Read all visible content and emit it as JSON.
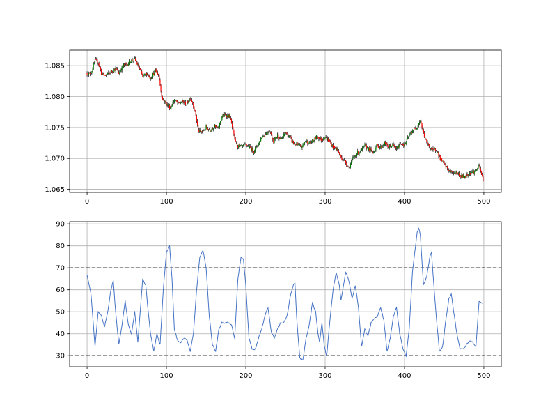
{
  "chart_data": [
    {
      "type": "candlestick",
      "title": "",
      "xlabel": "",
      "ylabel": "",
      "xlim": [
        -22,
        522
      ],
      "ylim": [
        1.0645,
        1.0875
      ],
      "x_ticks": [
        0,
        100,
        200,
        300,
        400,
        500
      ],
      "x_tick_labels": [
        "0",
        "100",
        "200",
        "300",
        "400",
        "500"
      ],
      "y_ticks": [
        1.065,
        1.07,
        1.075,
        1.08,
        1.085
      ],
      "y_tick_labels": [
        "1.065",
        "1.070",
        "1.075",
        "1.080",
        "1.085"
      ],
      "grid": true,
      "colors": {
        "up": "#008000",
        "down": "#ff0000",
        "wick": "#000000"
      },
      "close_anchors": [
        [
          0,
          1.0838
        ],
        [
          3,
          1.0836
        ],
        [
          6,
          1.0842
        ],
        [
          10,
          1.0858
        ],
        [
          14,
          1.0856
        ],
        [
          18,
          1.0838
        ],
        [
          22,
          1.0834
        ],
        [
          28,
          1.0838
        ],
        [
          32,
          1.0842
        ],
        [
          36,
          1.0845
        ],
        [
          40,
          1.0838
        ],
        [
          45,
          1.085
        ],
        [
          50,
          1.0852
        ],
        [
          55,
          1.0858
        ],
        [
          60,
          1.086
        ],
        [
          65,
          1.0848
        ],
        [
          70,
          1.0832
        ],
        [
          75,
          1.0838
        ],
        [
          80,
          1.083
        ],
        [
          86,
          1.0842
        ],
        [
          90,
          1.0835
        ],
        [
          95,
          1.0795
        ],
        [
          100,
          1.0788
        ],
        [
          105,
          1.0782
        ],
        [
          110,
          1.0795
        ],
        [
          115,
          1.0788
        ],
        [
          120,
          1.0792
        ],
        [
          125,
          1.0788
        ],
        [
          130,
          1.0798
        ],
        [
          133,
          1.079
        ],
        [
          137,
          1.077
        ],
        [
          140,
          1.0745
        ],
        [
          145,
          1.0742
        ],
        [
          150,
          1.075
        ],
        [
          155,
          1.0746
        ],
        [
          160,
          1.0752
        ],
        [
          165,
          1.0748
        ],
        [
          170,
          1.0768
        ],
        [
          175,
          1.077
        ],
        [
          180,
          1.0768
        ],
        [
          183,
          1.075
        ],
        [
          186,
          1.073
        ],
        [
          190,
          1.072
        ],
        [
          195,
          1.0718
        ],
        [
          200,
          1.0722
        ],
        [
          205,
          1.0718
        ],
        [
          210,
          1.0712
        ],
        [
          215,
          1.0722
        ],
        [
          220,
          1.0735
        ],
        [
          225,
          1.074
        ],
        [
          230,
          1.0745
        ],
        [
          235,
          1.0728
        ],
        [
          240,
          1.0738
        ],
        [
          245,
          1.073
        ],
        [
          250,
          1.0742
        ],
        [
          255,
          1.0735
        ],
        [
          260,
          1.0725
        ],
        [
          265,
          1.0722
        ],
        [
          270,
          1.0718
        ],
        [
          275,
          1.0728
        ],
        [
          280,
          1.0725
        ],
        [
          285,
          1.0728
        ],
        [
          290,
          1.0736
        ],
        [
          295,
          1.073
        ],
        [
          300,
          1.0735
        ],
        [
          305,
          1.0728
        ],
        [
          310,
          1.0718
        ],
        [
          315,
          1.0715
        ],
        [
          320,
          1.0702
        ],
        [
          325,
          1.0695
        ],
        [
          330,
          1.0685
        ],
        [
          335,
          1.07
        ],
        [
          340,
          1.0708
        ],
        [
          345,
          1.0712
        ],
        [
          350,
          1.072
        ],
        [
          355,
          1.0715
        ],
        [
          360,
          1.071
        ],
        [
          365,
          1.072
        ],
        [
          370,
          1.0718
        ],
        [
          375,
          1.0725
        ],
        [
          380,
          1.0718
        ],
        [
          385,
          1.0722
        ],
        [
          390,
          1.0715
        ],
        [
          395,
          1.0725
        ],
        [
          400,
          1.0722
        ],
        [
          405,
          1.0735
        ],
        [
          410,
          1.0745
        ],
        [
          415,
          1.075
        ],
        [
          420,
          1.0762
        ],
        [
          424,
          1.074
        ],
        [
          428,
          1.0725
        ],
        [
          432,
          1.0718
        ],
        [
          436,
          1.0712
        ],
        [
          440,
          1.0715
        ],
        [
          445,
          1.07
        ],
        [
          450,
          1.069
        ],
        [
          455,
          1.0682
        ],
        [
          460,
          1.0676
        ],
        [
          465,
          1.0678
        ],
        [
          470,
          1.0672
        ],
        [
          475,
          1.067
        ],
        [
          480,
          1.0675
        ],
        [
          485,
          1.0678
        ],
        [
          490,
          1.068
        ],
        [
          494,
          1.0688
        ],
        [
          499,
          1.0665
        ]
      ]
    },
    {
      "type": "line",
      "title": "",
      "xlabel": "",
      "ylabel": "",
      "xlim": [
        -22,
        522
      ],
      "ylim": [
        25,
        91
      ],
      "x_ticks": [
        0,
        100,
        200,
        300,
        400,
        500
      ],
      "x_tick_labels": [
        "0",
        "100",
        "200",
        "300",
        "400",
        "500"
      ],
      "y_ticks": [
        30,
        40,
        50,
        60,
        70,
        80,
        90
      ],
      "y_tick_labels": [
        "30",
        "40",
        "50",
        "60",
        "70",
        "80",
        "90"
      ],
      "grid": true,
      "reference_lines": [
        70,
        30
      ],
      "colors": {
        "line": "#4472c4",
        "reference": "#000000"
      },
      "series": [
        {
          "values_at": [
            [
              0,
              67
            ],
            [
              5,
              58
            ],
            [
              10,
              34
            ],
            [
              14,
              50
            ],
            [
              18,
              48
            ],
            [
              22,
              43
            ],
            [
              26,
              50
            ],
            [
              30,
              60
            ],
            [
              33,
              64
            ],
            [
              36,
              50
            ],
            [
              40,
              35
            ],
            [
              44,
              44
            ],
            [
              48,
              55
            ],
            [
              52,
              44
            ],
            [
              56,
              40
            ],
            [
              60,
              50
            ],
            [
              64,
              36
            ],
            [
              68,
              55
            ],
            [
              70,
              65
            ],
            [
              74,
              62
            ],
            [
              77,
              50
            ],
            [
              80,
              40
            ],
            [
              84,
              32
            ],
            [
              88,
              40
            ],
            [
              92,
              35
            ],
            [
              96,
              60
            ],
            [
              100,
              77
            ],
            [
              104,
              80
            ],
            [
              107,
              65
            ],
            [
              110,
              42
            ],
            [
              114,
              37
            ],
            [
              118,
              36
            ],
            [
              122,
              38
            ],
            [
              126,
              37
            ],
            [
              130,
              32
            ],
            [
              134,
              40
            ],
            [
              138,
              60
            ],
            [
              142,
              75
            ],
            [
              146,
              78
            ],
            [
              150,
              70
            ],
            [
              154,
              48
            ],
            [
              158,
              35
            ],
            [
              162,
              32
            ],
            [
              166,
              42
            ],
            [
              170,
              45
            ],
            [
              174,
              45
            ],
            [
              178,
              45
            ],
            [
              182,
              44
            ],
            [
              186,
              38
            ],
            [
              190,
              65
            ],
            [
              194,
              75
            ],
            [
              197,
              74
            ],
            [
              200,
              62
            ],
            [
              204,
              38
            ],
            [
              208,
              33
            ],
            [
              212,
              33
            ],
            [
              216,
              38
            ],
            [
              220,
              42
            ],
            [
              224,
              48
            ],
            [
              228,
              52
            ],
            [
              232,
              41
            ],
            [
              236,
              38
            ],
            [
              240,
              42
            ],
            [
              244,
              45
            ],
            [
              248,
              45
            ],
            [
              252,
              48
            ],
            [
              256,
              57
            ],
            [
              260,
              62
            ],
            [
              262,
              63
            ],
            [
              264,
              48
            ],
            [
              268,
              29
            ],
            [
              272,
              28
            ],
            [
              276,
              38
            ],
            [
              280,
              44
            ],
            [
              284,
              54
            ],
            [
              288,
              50
            ],
            [
              291,
              40
            ],
            [
              293,
              36
            ],
            [
              296,
              45
            ],
            [
              299,
              34
            ],
            [
              302,
              30
            ],
            [
              306,
              46
            ],
            [
              310,
              60
            ],
            [
              314,
              68
            ],
            [
              318,
              62
            ],
            [
              320,
              55
            ],
            [
              324,
              64
            ],
            [
              326,
              68
            ],
            [
              330,
              64
            ],
            [
              334,
              56
            ],
            [
              338,
              62
            ],
            [
              342,
              52
            ],
            [
              346,
              34
            ],
            [
              350,
              42
            ],
            [
              354,
              39
            ],
            [
              358,
              45
            ],
            [
              362,
              47
            ],
            [
              366,
              48
            ],
            [
              370,
              52
            ],
            [
              374,
              46
            ],
            [
              378,
              32
            ],
            [
              382,
              38
            ],
            [
              386,
              48
            ],
            [
              390,
              52
            ],
            [
              394,
              40
            ],
            [
              398,
              33
            ],
            [
              402,
              30
            ],
            [
              406,
              42
            ],
            [
              410,
              68
            ],
            [
              414,
              80
            ],
            [
              416,
              86
            ],
            [
              418,
              88
            ],
            [
              420,
              85
            ],
            [
              424,
              62
            ],
            [
              428,
              66
            ],
            [
              432,
              75
            ],
            [
              434,
              77
            ],
            [
              437,
              62
            ],
            [
              440,
              48
            ],
            [
              444,
              32
            ],
            [
              448,
              34
            ],
            [
              452,
              46
            ],
            [
              456,
              56
            ],
            [
              459,
              58
            ],
            [
              462,
              50
            ],
            [
              466,
              40
            ],
            [
              470,
              33
            ],
            [
              474,
              33
            ],
            [
              478,
              35
            ],
            [
              482,
              37
            ],
            [
              486,
              36
            ],
            [
              490,
              34
            ],
            [
              494,
              55
            ],
            [
              498,
              54
            ]
          ]
        }
      ]
    }
  ]
}
